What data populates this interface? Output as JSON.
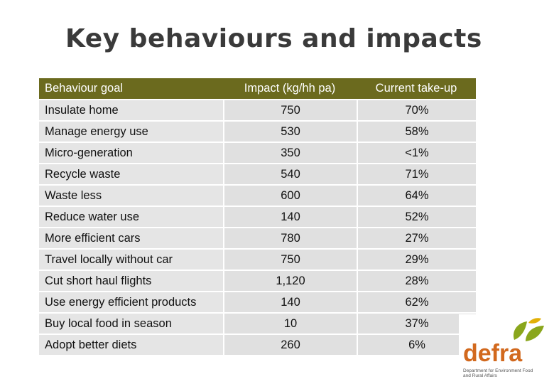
{
  "title": "Key behaviours and impacts",
  "table": {
    "headers": [
      "Behaviour goal",
      "Impact (kg/hh pa)",
      "Current take-up"
    ],
    "rows": [
      [
        "Insulate home",
        "750",
        "70%"
      ],
      [
        "Manage energy use",
        "530",
        "58%"
      ],
      [
        "Micro-generation",
        "350",
        "<1%"
      ],
      [
        "Recycle waste",
        "540",
        "71%"
      ],
      [
        "Waste less",
        "600",
        "64%"
      ],
      [
        "Reduce water use",
        "140",
        "52%"
      ],
      [
        "More efficient cars",
        "780",
        "27%"
      ],
      [
        "Travel locally without car",
        "750",
        "29%"
      ],
      [
        "Cut short haul flights",
        "1,120",
        "28%"
      ],
      [
        "Use energy efficient products",
        "140",
        "62%"
      ],
      [
        "Buy local food in season",
        "10",
        "37%"
      ],
      [
        "Adopt better diets",
        "260",
        "6%"
      ]
    ]
  },
  "logo": {
    "word": "defra",
    "subtitle": "Department for Environment Food and Rural Affairs",
    "colors": {
      "word": "#d2691e",
      "leaf_green": "#8aa61c",
      "leaf_yellow": "#e2b007"
    }
  },
  "colors": {
    "header_bg": "#6b6a1e",
    "row_bg": "#e5e5e5",
    "title": "#3a3a3a"
  }
}
